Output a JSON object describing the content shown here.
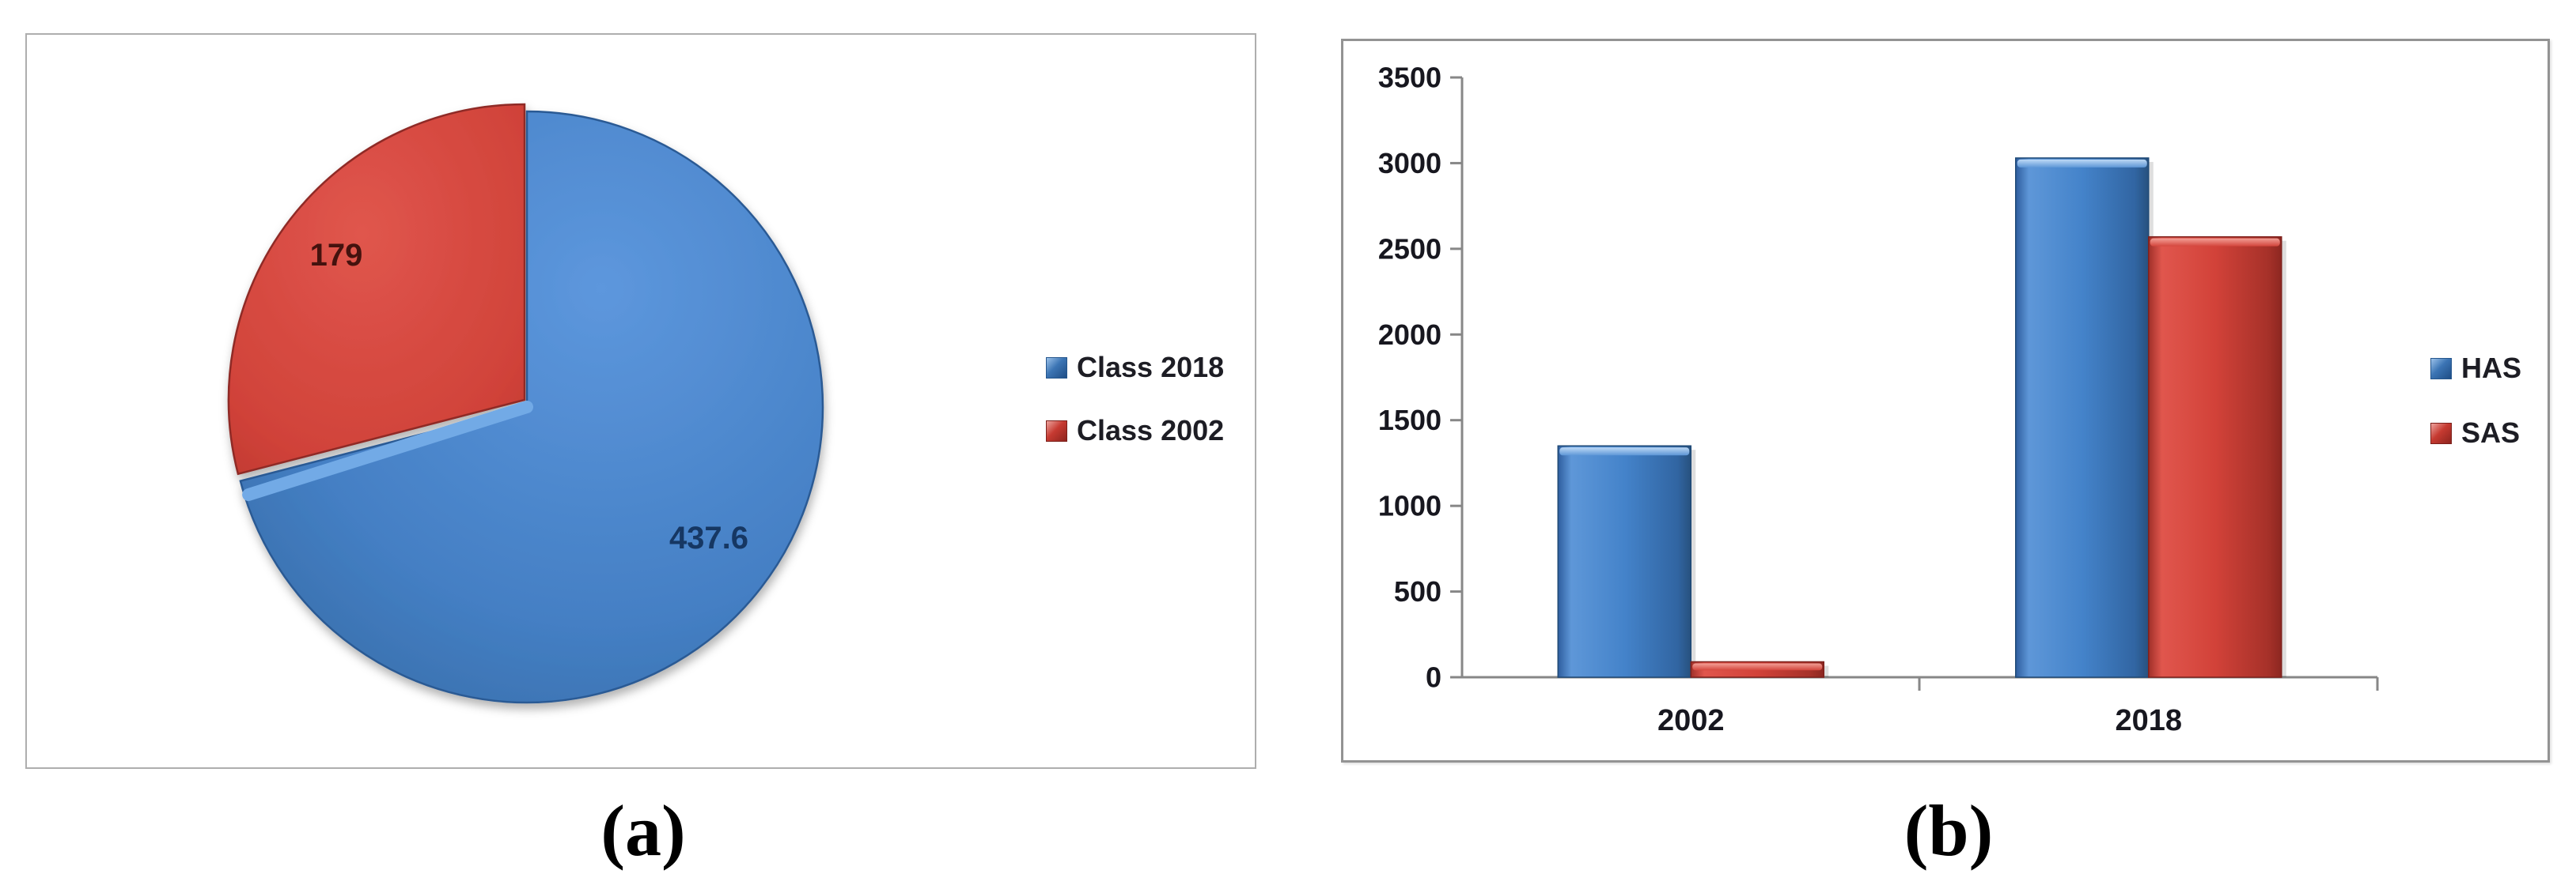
{
  "captions": {
    "a": "(a)",
    "b": "(b)"
  },
  "chart_data": [
    {
      "panel": "a",
      "type": "pie",
      "labels": [
        "Class 2018",
        "Class 2002"
      ],
      "values": [
        437.6,
        179
      ],
      "data_labels": [
        "437.6",
        "179"
      ],
      "colors": [
        "#3f78c0",
        "#cf4036"
      ],
      "legend_position": "right",
      "start_angle_deg": 0,
      "direction": "clockwise-from-top"
    },
    {
      "panel": "b",
      "type": "bar",
      "categories": [
        "2002",
        "2018"
      ],
      "series": [
        {
          "name": "HAS",
          "color": "#3f78c0",
          "values": [
            1350,
            3030
          ]
        },
        {
          "name": "SAS",
          "color": "#cf4036",
          "values": [
            90,
            2570
          ]
        }
      ],
      "ylim": [
        0,
        3500
      ],
      "yticks": [
        0,
        500,
        1000,
        1500,
        2000,
        2500,
        3000,
        3500
      ],
      "grid": false,
      "legend_position": "right"
    }
  ]
}
